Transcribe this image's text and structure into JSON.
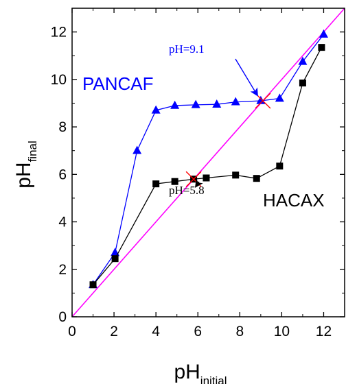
{
  "chart_data": {
    "type": "line",
    "xlabel": "pH",
    "xlabel_sub": "initial",
    "ylabel": "pH",
    "ylabel_sub": "final",
    "xlim": [
      0,
      13
    ],
    "ylim": [
      0,
      13
    ],
    "xticks": [
      0,
      2,
      4,
      6,
      8,
      10,
      12
    ],
    "yticks": [
      0,
      2,
      4,
      6,
      8,
      10,
      12
    ],
    "grid": false,
    "series": [
      {
        "name": "PANCAF",
        "marker": "triangle",
        "color": "#0000ff",
        "x": [
          1.0,
          2.05,
          3.1,
          4.0,
          4.9,
          5.9,
          6.9,
          7.8,
          9.0,
          9.9,
          11.0,
          12.0
        ],
        "y": [
          1.35,
          2.7,
          7.0,
          8.7,
          8.9,
          8.93,
          8.95,
          9.05,
          9.1,
          9.2,
          10.75,
          11.9
        ]
      },
      {
        "name": "HACAX",
        "marker": "square",
        "color": "#000000",
        "x": [
          1.0,
          2.05,
          4.0,
          4.9,
          5.8,
          6.4,
          7.8,
          8.8,
          9.9,
          11.0,
          11.9
        ],
        "y": [
          1.35,
          2.45,
          5.6,
          5.7,
          5.8,
          5.85,
          5.97,
          5.83,
          6.35,
          9.85,
          11.35
        ]
      }
    ],
    "reference_line": {
      "x": [
        0,
        13
      ],
      "y": [
        0,
        13
      ],
      "color": "#ff00ff"
    },
    "annotations": [
      {
        "text": "pH=9.1",
        "color": "#0000ff",
        "x": 9.1,
        "y": 9.1,
        "text_at": [
          6.4,
          11.0
        ]
      },
      {
        "text": "pH=5.8",
        "color": "#000000",
        "x": 5.8,
        "y": 5.8,
        "text_at": [
          6.0,
          4.05
        ]
      }
    ]
  }
}
